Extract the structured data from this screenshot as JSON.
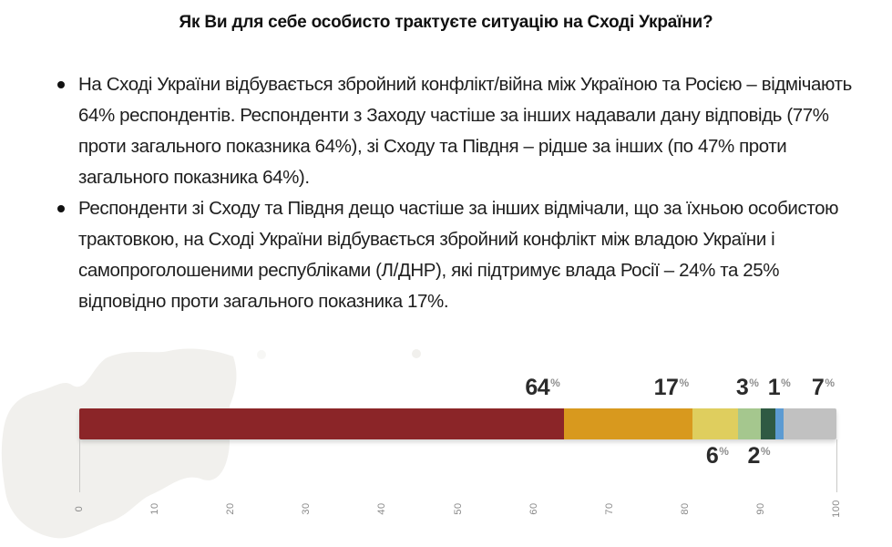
{
  "title": "Як Ви для себе особисто трактуєте ситуацію на Сході України?",
  "bullets": [
    "На Сході України відбувається збройний конфлікт/війна між Україною та Росією – відмічають 64% респондентів. Респонденти з Заходу частіше за інших надавали дану відповідь (77% проти загального показника 64%), зі Сходу та Півдня – рідше за інших (по 47% проти загального показника 64%).",
    "Респонденти зі Сходу та Півдня дещо частіше за інших відмічали, що за їхньою особистою трактовкою, на Сході України відбувається збройний конфлікт між владою України і самопроголошеними республіками (Л/ДНР), які підтримує влада Росії – 24% та 25% відповідно проти загального показника 17%."
  ],
  "chart_data": {
    "type": "bar",
    "variant": "stacked-horizontal-single-bar",
    "title": "",
    "xlabel": "",
    "ylabel": "",
    "xlim": [
      0,
      100
    ],
    "x_ticks": [
      0,
      10,
      20,
      30,
      40,
      50,
      60,
      70,
      80,
      90,
      100
    ],
    "unit": "%",
    "grid": false,
    "legend": "none",
    "segments": [
      {
        "label": "64",
        "value": 64,
        "color": "#8b2528",
        "label_position": "above"
      },
      {
        "label": "17",
        "value": 17,
        "color": "#d8991e",
        "label_position": "above"
      },
      {
        "label": "6",
        "value": 6,
        "color": "#dfce5e",
        "label_position": "below"
      },
      {
        "label": "3",
        "value": 3,
        "color": "#a5c78e",
        "label_position": "above"
      },
      {
        "label": "2",
        "value": 2,
        "color": "#2f5a43",
        "label_position": "below"
      },
      {
        "label": "1",
        "value": 1,
        "color": "#5c9bd2",
        "label_position": "above"
      },
      {
        "label": "7",
        "value": 7,
        "color": "#c1c1c1",
        "label_position": "above"
      }
    ],
    "tick_color": "#8a8a8a",
    "value_color": "#2b2b2b",
    "percent_sign_color": "#8f8f8f"
  },
  "watermark": {
    "name": "ukraine-map",
    "color": "#f1f0ed"
  }
}
